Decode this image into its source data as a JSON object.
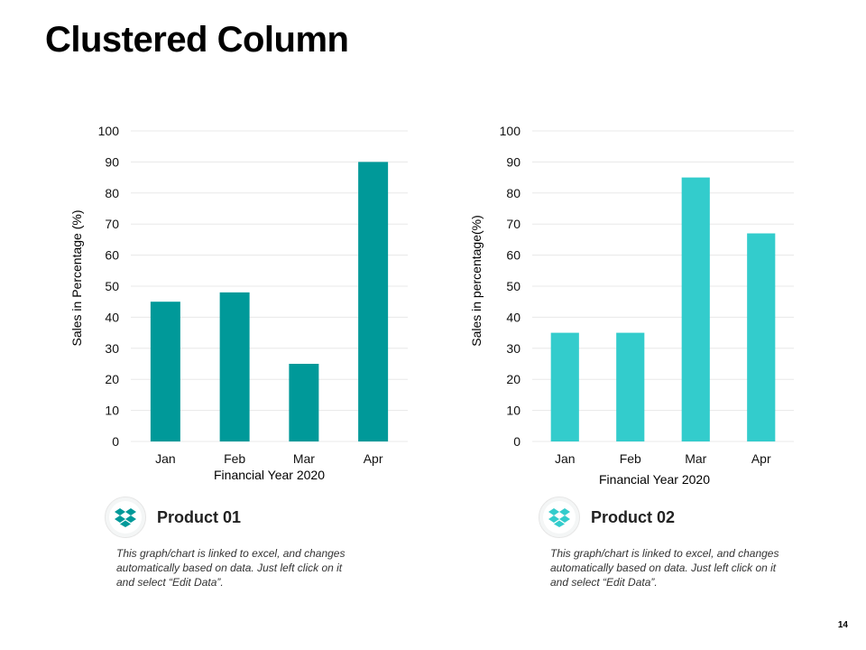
{
  "slide": {
    "title": "Clustered Column",
    "page_number": "14"
  },
  "chart_data": [
    {
      "type": "bar",
      "categories": [
        "Jan",
        "Feb",
        "Mar",
        "Apr"
      ],
      "values": [
        45,
        48,
        25,
        90
      ],
      "color": "#009999",
      "title": "",
      "xlabel": "Financial Year 2020",
      "ylabel": "Sales in Percentage (%)",
      "ylim": [
        0,
        100
      ],
      "yticks": [
        0,
        10,
        20,
        30,
        40,
        50,
        60,
        70,
        80,
        90,
        100
      ],
      "grid": true
    },
    {
      "type": "bar",
      "categories": [
        "Jan",
        "Feb",
        "Mar",
        "Apr"
      ],
      "values": [
        35,
        35,
        85,
        67
      ],
      "color": "#33CCCC",
      "title": "",
      "xlabel": "Financial Year 2020",
      "ylabel": "Sales in percentage(%)",
      "ylim": [
        0,
        100
      ],
      "yticks": [
        0,
        10,
        20,
        30,
        40,
        50,
        60,
        70,
        80,
        90,
        100
      ],
      "grid": true
    }
  ],
  "products": [
    {
      "name": "Product 01",
      "icon": "dropbox-icon",
      "description": "This graph/chart is linked to excel, and changes automatically based on data. Just left click on it and select “Edit Data”."
    },
    {
      "name": "Product 02",
      "icon": "dropbox-icon",
      "description": "This graph/chart is linked to excel, and changes automatically based on data. Just left click on it and select “Edit Data”."
    }
  ]
}
